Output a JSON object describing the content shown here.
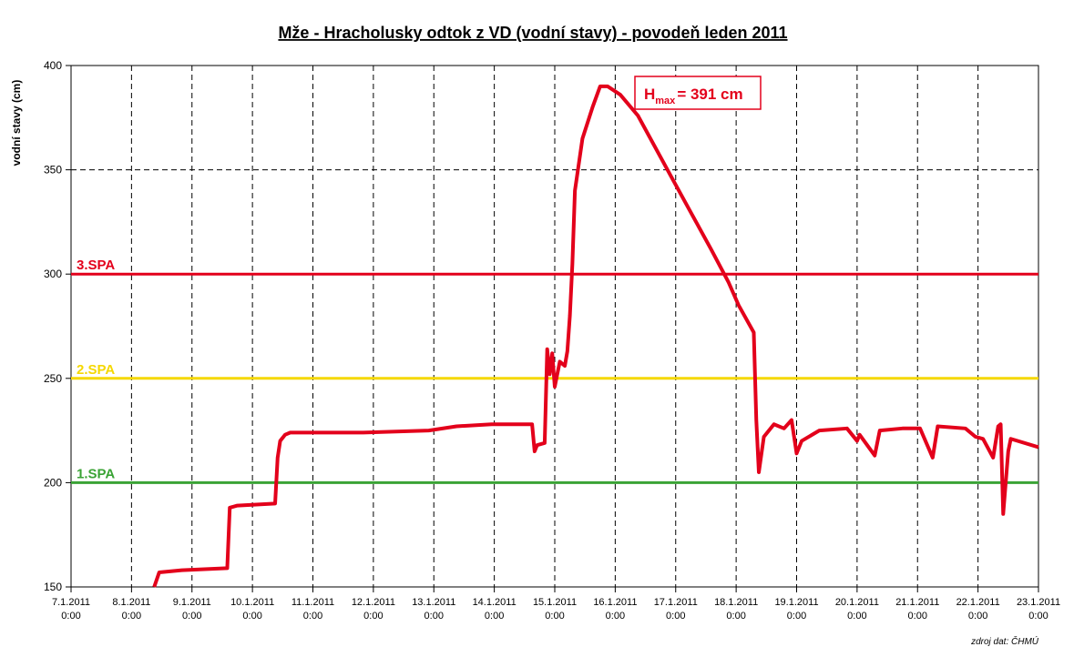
{
  "chart_data": {
    "type": "line",
    "title": "Mže - Hracholusky odtok z VD (vodní stavy) - povodeň leden 2011",
    "y_label": "vodní stavy (cm)",
    "source": "zdroj dat: ČHMÚ",
    "annotation": {
      "text": "H",
      "sub": "max",
      "rest": "= 391 cm",
      "color": "#e3001b"
    },
    "thresholds": [
      {
        "label": "3.SPA",
        "value": 300,
        "color": "#e3001b"
      },
      {
        "label": "2.SPA",
        "value": 250,
        "color": "#f5d800"
      },
      {
        "label": "1.SPA",
        "value": 200,
        "color": "#3aa335"
      }
    ],
    "xlim": [
      "2011-01-07T00:00",
      "2011-01-23T00:00"
    ],
    "xticks": [
      {
        "value": "2011-01-07T00:00",
        "label": [
          "7.1.2011",
          "0:00"
        ]
      },
      {
        "value": "2011-01-08T00:00",
        "label": [
          "8.1.2011",
          "0:00"
        ]
      },
      {
        "value": "2011-01-09T00:00",
        "label": [
          "9.1.2011",
          "0:00"
        ]
      },
      {
        "value": "2011-01-10T00:00",
        "label": [
          "10.1.2011",
          "0:00"
        ]
      },
      {
        "value": "2011-01-11T00:00",
        "label": [
          "11.1.2011",
          "0:00"
        ]
      },
      {
        "value": "2011-01-12T00:00",
        "label": [
          "12.1.2011",
          "0:00"
        ]
      },
      {
        "value": "2011-01-13T00:00",
        "label": [
          "13.1.2011",
          "0:00"
        ]
      },
      {
        "value": "2011-01-14T00:00",
        "label": [
          "14.1.2011",
          "0:00"
        ]
      },
      {
        "value": "2011-01-15T00:00",
        "label": [
          "15.1.2011",
          "0:00"
        ]
      },
      {
        "value": "2011-01-16T00:00",
        "label": [
          "16.1.2011",
          "0:00"
        ]
      },
      {
        "value": "2011-01-17T00:00",
        "label": [
          "17.1.2011",
          "0:00"
        ]
      },
      {
        "value": "2011-01-18T00:00",
        "label": [
          "18.1.2011",
          "0:00"
        ]
      },
      {
        "value": "2011-01-19T00:00",
        "label": [
          "19.1.2011",
          "0:00"
        ]
      },
      {
        "value": "2011-01-20T00:00",
        "label": [
          "20.1.2011",
          "0:00"
        ]
      },
      {
        "value": "2011-01-21T00:00",
        "label": [
          "21.1.2011",
          "0:00"
        ]
      },
      {
        "value": "2011-01-22T00:00",
        "label": [
          "22.1.2011",
          "0:00"
        ]
      },
      {
        "value": "2011-01-23T00:00",
        "label": [
          "23.1.2011",
          "0:00"
        ]
      }
    ],
    "ylim": [
      150,
      400
    ],
    "yticks": [
      150,
      200,
      250,
      300,
      350,
      400
    ],
    "grid": true,
    "x": [
      "2011-01-08T09:00",
      "2011-01-08T11:00",
      "2011-01-08T20:00",
      "2011-01-09T14:00",
      "2011-01-09T15:00",
      "2011-01-09T18:00",
      "2011-01-10T09:00",
      "2011-01-10T10:00",
      "2011-01-10T11:00",
      "2011-01-10T13:00",
      "2011-01-10T15:00",
      "2011-01-11T20:00",
      "2011-01-12T22:00",
      "2011-01-13T09:00",
      "2011-01-13T23:00",
      "2011-01-14T15:00",
      "2011-01-14T16:00",
      "2011-01-14T17:00",
      "2011-01-14T20:00",
      "2011-01-14T21:00",
      "2011-01-14T22:00",
      "2011-01-14T23:00",
      "2011-01-15T00:00",
      "2011-01-15T02:00",
      "2011-01-15T04:00",
      "2011-01-15T05:00",
      "2011-01-15T06:00",
      "2011-01-15T07:00",
      "2011-01-15T08:00",
      "2011-01-15T11:00",
      "2011-01-15T15:00",
      "2011-01-15T18:00",
      "2011-01-15T21:00",
      "2011-01-16T02:00",
      "2011-01-16T09:00",
      "2011-01-16T23:00",
      "2011-01-17T14:00",
      "2011-01-17T21:00",
      "2011-01-18T01:00",
      "2011-01-18T07:00",
      "2011-01-18T08:00",
      "2011-01-18T09:00",
      "2011-01-18T11:00",
      "2011-01-18T15:00",
      "2011-01-18T19:00",
      "2011-01-18T22:00",
      "2011-01-19T00:00",
      "2011-01-19T02:00",
      "2011-01-19T09:00",
      "2011-01-19T20:00",
      "2011-01-20T00:00",
      "2011-01-20T01:00",
      "2011-01-20T07:00",
      "2011-01-20T09:00",
      "2011-01-20T18:00",
      "2011-01-21T01:00",
      "2011-01-21T06:00",
      "2011-01-21T08:00",
      "2011-01-21T19:00",
      "2011-01-21T23:00",
      "2011-01-22T02:00",
      "2011-01-22T06:00",
      "2011-01-22T08:00",
      "2011-01-22T09:00",
      "2011-01-22T10:00",
      "2011-01-22T12:00",
      "2011-01-22T13:00",
      "2011-01-23T00:00"
    ],
    "series": [
      {
        "name": "vodní stavy",
        "color": "#e3001b",
        "values": [
          150,
          157,
          158,
          159,
          188,
          189,
          190,
          212,
          220,
          223,
          224,
          224,
          225,
          227,
          228,
          228,
          215,
          218,
          219,
          264,
          252,
          262,
          246,
          258,
          256,
          263,
          280,
          305,
          340,
          365,
          380,
          390,
          390,
          386,
          376,
          345,
          312,
          296,
          285,
          272,
          230,
          205,
          222,
          228,
          226,
          230,
          214,
          220,
          225,
          226,
          220,
          223,
          213,
          225,
          226,
          226,
          212,
          227,
          226,
          222,
          221,
          212,
          227,
          228,
          185,
          215,
          221,
          217
        ]
      }
    ]
  }
}
